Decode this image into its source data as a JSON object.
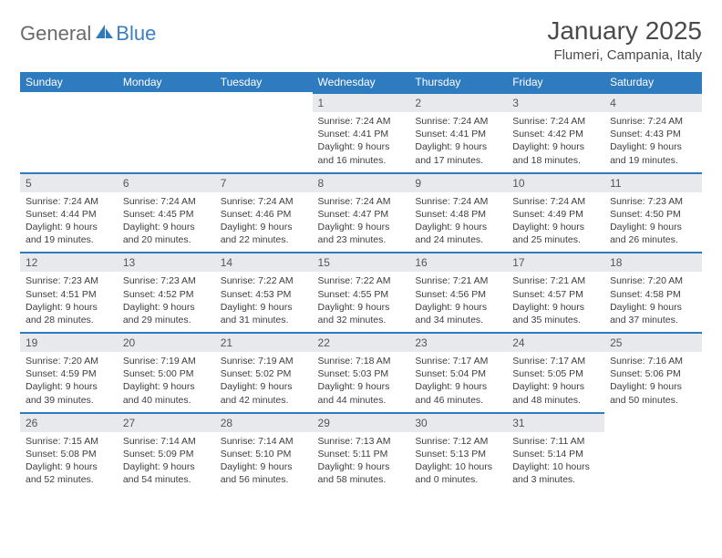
{
  "logo": {
    "general": "General",
    "blue": "Blue"
  },
  "title": "January 2025",
  "location": "Flumeri, Campania, Italy",
  "colors": {
    "header_bg": "#2f7bbf",
    "header_text": "#ffffff",
    "daynum_bg": "#e7e9ec",
    "daynum_border": "#2f7bbf",
    "text": "#3d3d3d",
    "title_color": "#4a4a4a",
    "logo_gray": "#6a6a6a",
    "logo_blue": "#3a7fc0"
  },
  "daynames": [
    "Sunday",
    "Monday",
    "Tuesday",
    "Wednesday",
    "Thursday",
    "Friday",
    "Saturday"
  ],
  "weeks": [
    [
      null,
      null,
      null,
      {
        "n": "1",
        "sunrise": "7:24 AM",
        "sunset": "4:41 PM",
        "daylight": "9 hours and 16 minutes."
      },
      {
        "n": "2",
        "sunrise": "7:24 AM",
        "sunset": "4:41 PM",
        "daylight": "9 hours and 17 minutes."
      },
      {
        "n": "3",
        "sunrise": "7:24 AM",
        "sunset": "4:42 PM",
        "daylight": "9 hours and 18 minutes."
      },
      {
        "n": "4",
        "sunrise": "7:24 AM",
        "sunset": "4:43 PM",
        "daylight": "9 hours and 19 minutes."
      }
    ],
    [
      {
        "n": "5",
        "sunrise": "7:24 AM",
        "sunset": "4:44 PM",
        "daylight": "9 hours and 19 minutes."
      },
      {
        "n": "6",
        "sunrise": "7:24 AM",
        "sunset": "4:45 PM",
        "daylight": "9 hours and 20 minutes."
      },
      {
        "n": "7",
        "sunrise": "7:24 AM",
        "sunset": "4:46 PM",
        "daylight": "9 hours and 22 minutes."
      },
      {
        "n": "8",
        "sunrise": "7:24 AM",
        "sunset": "4:47 PM",
        "daylight": "9 hours and 23 minutes."
      },
      {
        "n": "9",
        "sunrise": "7:24 AM",
        "sunset": "4:48 PM",
        "daylight": "9 hours and 24 minutes."
      },
      {
        "n": "10",
        "sunrise": "7:24 AM",
        "sunset": "4:49 PM",
        "daylight": "9 hours and 25 minutes."
      },
      {
        "n": "11",
        "sunrise": "7:23 AM",
        "sunset": "4:50 PM",
        "daylight": "9 hours and 26 minutes."
      }
    ],
    [
      {
        "n": "12",
        "sunrise": "7:23 AM",
        "sunset": "4:51 PM",
        "daylight": "9 hours and 28 minutes."
      },
      {
        "n": "13",
        "sunrise": "7:23 AM",
        "sunset": "4:52 PM",
        "daylight": "9 hours and 29 minutes."
      },
      {
        "n": "14",
        "sunrise": "7:22 AM",
        "sunset": "4:53 PM",
        "daylight": "9 hours and 31 minutes."
      },
      {
        "n": "15",
        "sunrise": "7:22 AM",
        "sunset": "4:55 PM",
        "daylight": "9 hours and 32 minutes."
      },
      {
        "n": "16",
        "sunrise": "7:21 AM",
        "sunset": "4:56 PM",
        "daylight": "9 hours and 34 minutes."
      },
      {
        "n": "17",
        "sunrise": "7:21 AM",
        "sunset": "4:57 PM",
        "daylight": "9 hours and 35 minutes."
      },
      {
        "n": "18",
        "sunrise": "7:20 AM",
        "sunset": "4:58 PM",
        "daylight": "9 hours and 37 minutes."
      }
    ],
    [
      {
        "n": "19",
        "sunrise": "7:20 AM",
        "sunset": "4:59 PM",
        "daylight": "9 hours and 39 minutes."
      },
      {
        "n": "20",
        "sunrise": "7:19 AM",
        "sunset": "5:00 PM",
        "daylight": "9 hours and 40 minutes."
      },
      {
        "n": "21",
        "sunrise": "7:19 AM",
        "sunset": "5:02 PM",
        "daylight": "9 hours and 42 minutes."
      },
      {
        "n": "22",
        "sunrise": "7:18 AM",
        "sunset": "5:03 PM",
        "daylight": "9 hours and 44 minutes."
      },
      {
        "n": "23",
        "sunrise": "7:17 AM",
        "sunset": "5:04 PM",
        "daylight": "9 hours and 46 minutes."
      },
      {
        "n": "24",
        "sunrise": "7:17 AM",
        "sunset": "5:05 PM",
        "daylight": "9 hours and 48 minutes."
      },
      {
        "n": "25",
        "sunrise": "7:16 AM",
        "sunset": "5:06 PM",
        "daylight": "9 hours and 50 minutes."
      }
    ],
    [
      {
        "n": "26",
        "sunrise": "7:15 AM",
        "sunset": "5:08 PM",
        "daylight": "9 hours and 52 minutes."
      },
      {
        "n": "27",
        "sunrise": "7:14 AM",
        "sunset": "5:09 PM",
        "daylight": "9 hours and 54 minutes."
      },
      {
        "n": "28",
        "sunrise": "7:14 AM",
        "sunset": "5:10 PM",
        "daylight": "9 hours and 56 minutes."
      },
      {
        "n": "29",
        "sunrise": "7:13 AM",
        "sunset": "5:11 PM",
        "daylight": "9 hours and 58 minutes."
      },
      {
        "n": "30",
        "sunrise": "7:12 AM",
        "sunset": "5:13 PM",
        "daylight": "10 hours and 0 minutes."
      },
      {
        "n": "31",
        "sunrise": "7:11 AM",
        "sunset": "5:14 PM",
        "daylight": "10 hours and 3 minutes."
      },
      null
    ]
  ],
  "labels": {
    "sunrise": "Sunrise: ",
    "sunset": "Sunset: ",
    "daylight": "Daylight: "
  }
}
